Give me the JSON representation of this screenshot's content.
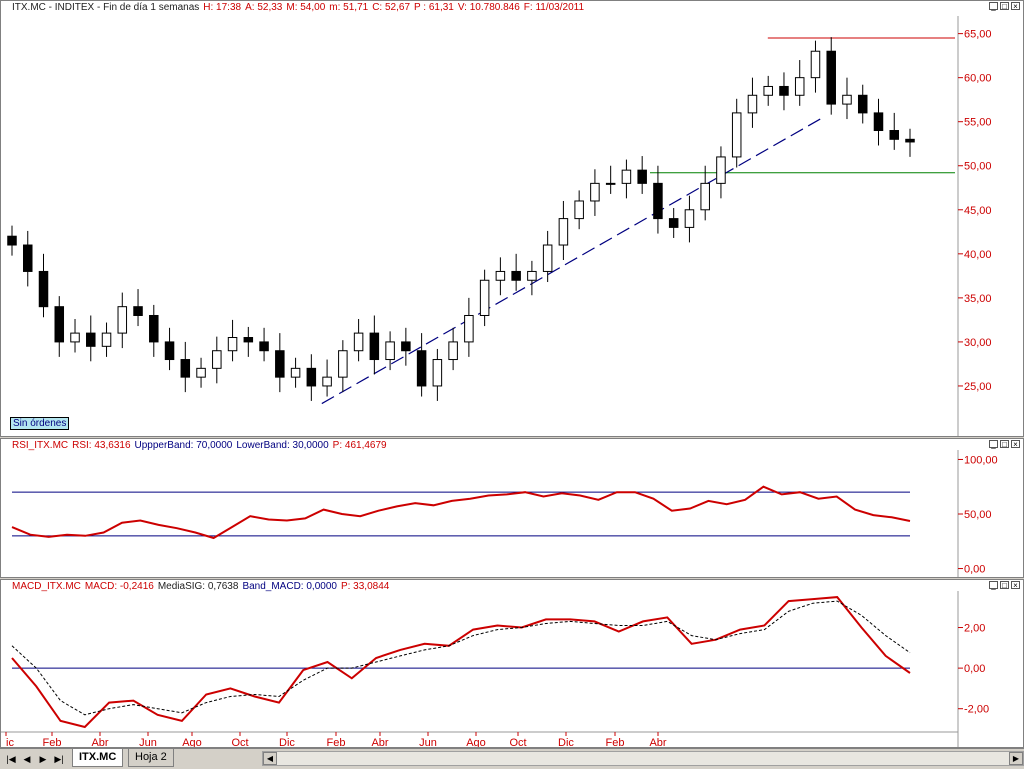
{
  "price_panel": {
    "title_items": [
      "ITX.MC - INDITEX - Fin de día 1 semanas",
      "H: 17:38",
      "A: 52,33",
      "M: 54,00",
      "m: 51,71",
      "C: 52,67",
      "P : 61,31",
      "V: 10.780.846",
      "F: 11/03/2011"
    ],
    "ticks": [
      "65,00",
      "60,00",
      "55,00",
      "50,00",
      "45,00",
      "40,00",
      "35,00",
      "30,00",
      "25,00"
    ],
    "badge": "Sin órdenes"
  },
  "rsi_panel": {
    "title_items": [
      "RSI_ITX.MC",
      "RSI: 43,6316",
      "UppperBand: 70,0000",
      "LowerBand: 30,0000",
      "P: 461,4679"
    ],
    "ticks": [
      "100,00",
      "50,00",
      "0,00"
    ]
  },
  "macd_panel": {
    "title_items": [
      "MACD_ITX.MC",
      "MACD: -0,2416",
      "MediaSIG: 0,7638",
      "Band_MACD: 0,0000",
      "P: 33,0844"
    ],
    "ticks": [
      "2,00",
      "0,00",
      "-2,00"
    ]
  },
  "window_buttons": [
    "_",
    "□",
    "×"
  ],
  "xaxis": {
    "labels": [
      "ic",
      "Feb",
      "Abr",
      "Jun",
      "Ago",
      "Oct",
      "Dic",
      "Feb",
      "Abr",
      "Jun",
      "Ago",
      "Oct",
      "Dic",
      "Feb",
      "Abr"
    ]
  },
  "tabs": {
    "active": "ITX.MC",
    "other": "Hoja 2"
  },
  "colors": {
    "price_axis": "#cc0000",
    "rsi_line": "#cc0000",
    "macd_line": "#cc0000",
    "band": "#000080",
    "resistance": "#cc0000",
    "support": "#008000",
    "trendline": "#000080"
  },
  "chart_data": [
    {
      "type": "candlestick",
      "title": "ITX.MC - INDITEX - Fin de día 1 semanas",
      "ylim": [
        20,
        67
      ],
      "levels": {
        "resistance": 64.5,
        "support": 49.2
      },
      "trendline": {
        "from": [
          0.345,
          23
        ],
        "to": [
          0.9,
          55.3
        ]
      },
      "close": [
        41,
        38,
        34,
        30,
        31,
        29.5,
        31,
        34,
        33,
        30,
        28,
        26,
        27,
        29,
        30.5,
        30,
        29,
        26,
        27,
        25,
        26,
        29,
        31,
        28,
        30,
        29,
        25,
        28,
        30,
        33,
        37,
        38,
        37,
        38,
        41,
        44,
        46,
        48,
        48,
        49.5,
        48,
        44,
        43,
        45,
        48,
        51,
        56,
        58,
        59,
        58,
        60,
        63,
        57,
        58,
        56,
        54,
        53,
        52.7
      ]
    },
    {
      "type": "line",
      "title": "RSI_ITX.MC",
      "ylim": [
        -5,
        105
      ],
      "bands": [
        30,
        70
      ],
      "values": [
        38,
        31,
        29,
        31,
        30,
        33,
        42,
        44,
        40,
        37,
        33,
        28,
        38,
        48,
        45,
        44,
        46,
        54,
        50,
        48,
        53,
        57,
        60,
        58,
        62,
        64,
        67,
        68,
        70,
        66,
        69,
        67,
        63,
        70,
        70,
        64,
        53,
        55,
        62,
        59,
        63,
        75,
        68,
        70,
        64,
        66,
        54,
        49,
        47,
        43.6
      ]
    },
    {
      "type": "line",
      "title": "MACD_ITX.MC",
      "ylim": [
        -3,
        3.8
      ],
      "zero_line": 0,
      "series": [
        {
          "name": "MACD",
          "values": [
            0.5,
            -0.9,
            -2.6,
            -2.9,
            -1.7,
            -1.6,
            -2.3,
            -2.6,
            -1.3,
            -1.0,
            -1.4,
            -1.7,
            -0.1,
            0.3,
            -0.5,
            0.5,
            0.9,
            1.2,
            1.1,
            1.9,
            2.1,
            2.0,
            2.4,
            2.4,
            2.3,
            1.8,
            2.3,
            2.5,
            1.2,
            1.4,
            1.9,
            2.1,
            3.3,
            3.4,
            3.5,
            2.0,
            0.6,
            -0.24
          ]
        },
        {
          "name": "MediaSIG",
          "values": [
            1.1,
            0.0,
            -1.6,
            -2.3,
            -2.0,
            -1.8,
            -2.0,
            -2.2,
            -1.7,
            -1.4,
            -1.3,
            -1.4,
            -0.6,
            0.0,
            0.0,
            0.3,
            0.6,
            0.9,
            1.1,
            1.6,
            1.9,
            2.0,
            2.2,
            2.3,
            2.2,
            2.1,
            2.1,
            2.3,
            1.6,
            1.4,
            1.7,
            1.9,
            2.8,
            3.2,
            3.3,
            2.6,
            1.6,
            0.76
          ]
        }
      ]
    }
  ]
}
